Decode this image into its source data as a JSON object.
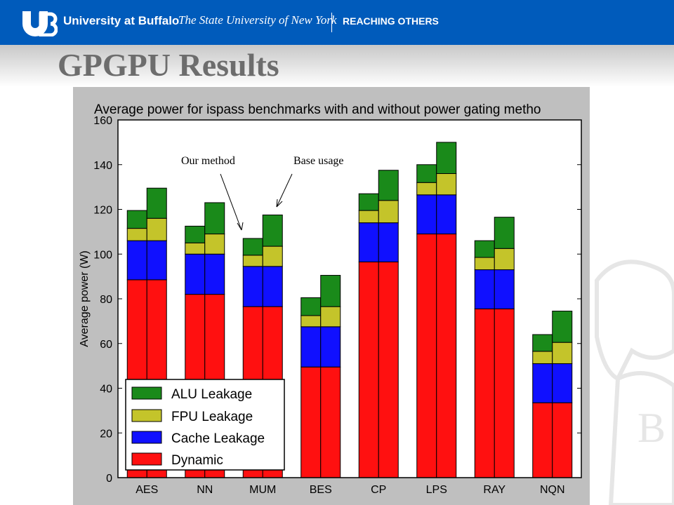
{
  "header": {
    "university": "University at Buffalo",
    "system": "The State University of New York",
    "tagline": "REACHING OTHERS"
  },
  "page": {
    "title": "GPGPU Results"
  },
  "annotations": {
    "our_method": "Our method",
    "base_usage": "Base usage"
  },
  "colors": {
    "alu": "#1a8a1a",
    "fpu": "#c4c42a",
    "cache": "#1010ff",
    "dynamic": "#ff1010"
  },
  "chart_data": {
    "type": "bar",
    "stacked": true,
    "title": "Average power for ispass benchmarks with and without power gating metho",
    "ylabel": "Average power (W)",
    "xlabel": "",
    "ylim": [
      0,
      160
    ],
    "yticks": [
      "0",
      "20",
      "40",
      "60",
      "80",
      "100",
      "120",
      "140",
      "160"
    ],
    "categories": [
      "AES",
      "NN",
      "MUM",
      "BES",
      "CP",
      "LPS",
      "RAY",
      "NQN"
    ],
    "series": [
      {
        "name": "Dynamic",
        "our_method": [
          88.5,
          82,
          76.5,
          49.5,
          96.5,
          109,
          75.5,
          33.5
        ],
        "base_usage": [
          88.5,
          82,
          76.5,
          49.5,
          96.5,
          109,
          75.5,
          33.5
        ]
      },
      {
        "name": "Cache Leakage",
        "our_method": [
          17.5,
          18,
          18,
          18,
          17.5,
          17.5,
          17.5,
          17.5
        ],
        "base_usage": [
          17.5,
          18,
          18,
          18,
          17.5,
          17.5,
          17.5,
          17.5
        ]
      },
      {
        "name": "FPU Leakage",
        "our_method": [
          5.5,
          5,
          5,
          5,
          5.5,
          5.5,
          5.5,
          5.5
        ],
        "base_usage": [
          10,
          9,
          9,
          9,
          10,
          9.5,
          9.5,
          9.5
        ]
      },
      {
        "name": "ALU Leakage",
        "our_method": [
          8,
          7.5,
          7.5,
          8,
          7.5,
          8,
          7.5,
          7.5
        ],
        "base_usage": [
          13.5,
          14,
          14,
          14,
          13.5,
          14,
          14,
          14
        ]
      }
    ],
    "legend_order": [
      "ALU Leakage",
      "FPU Leakage",
      "Cache Leakage",
      "Dynamic"
    ],
    "legend_position": "lower-left",
    "grid": false
  }
}
